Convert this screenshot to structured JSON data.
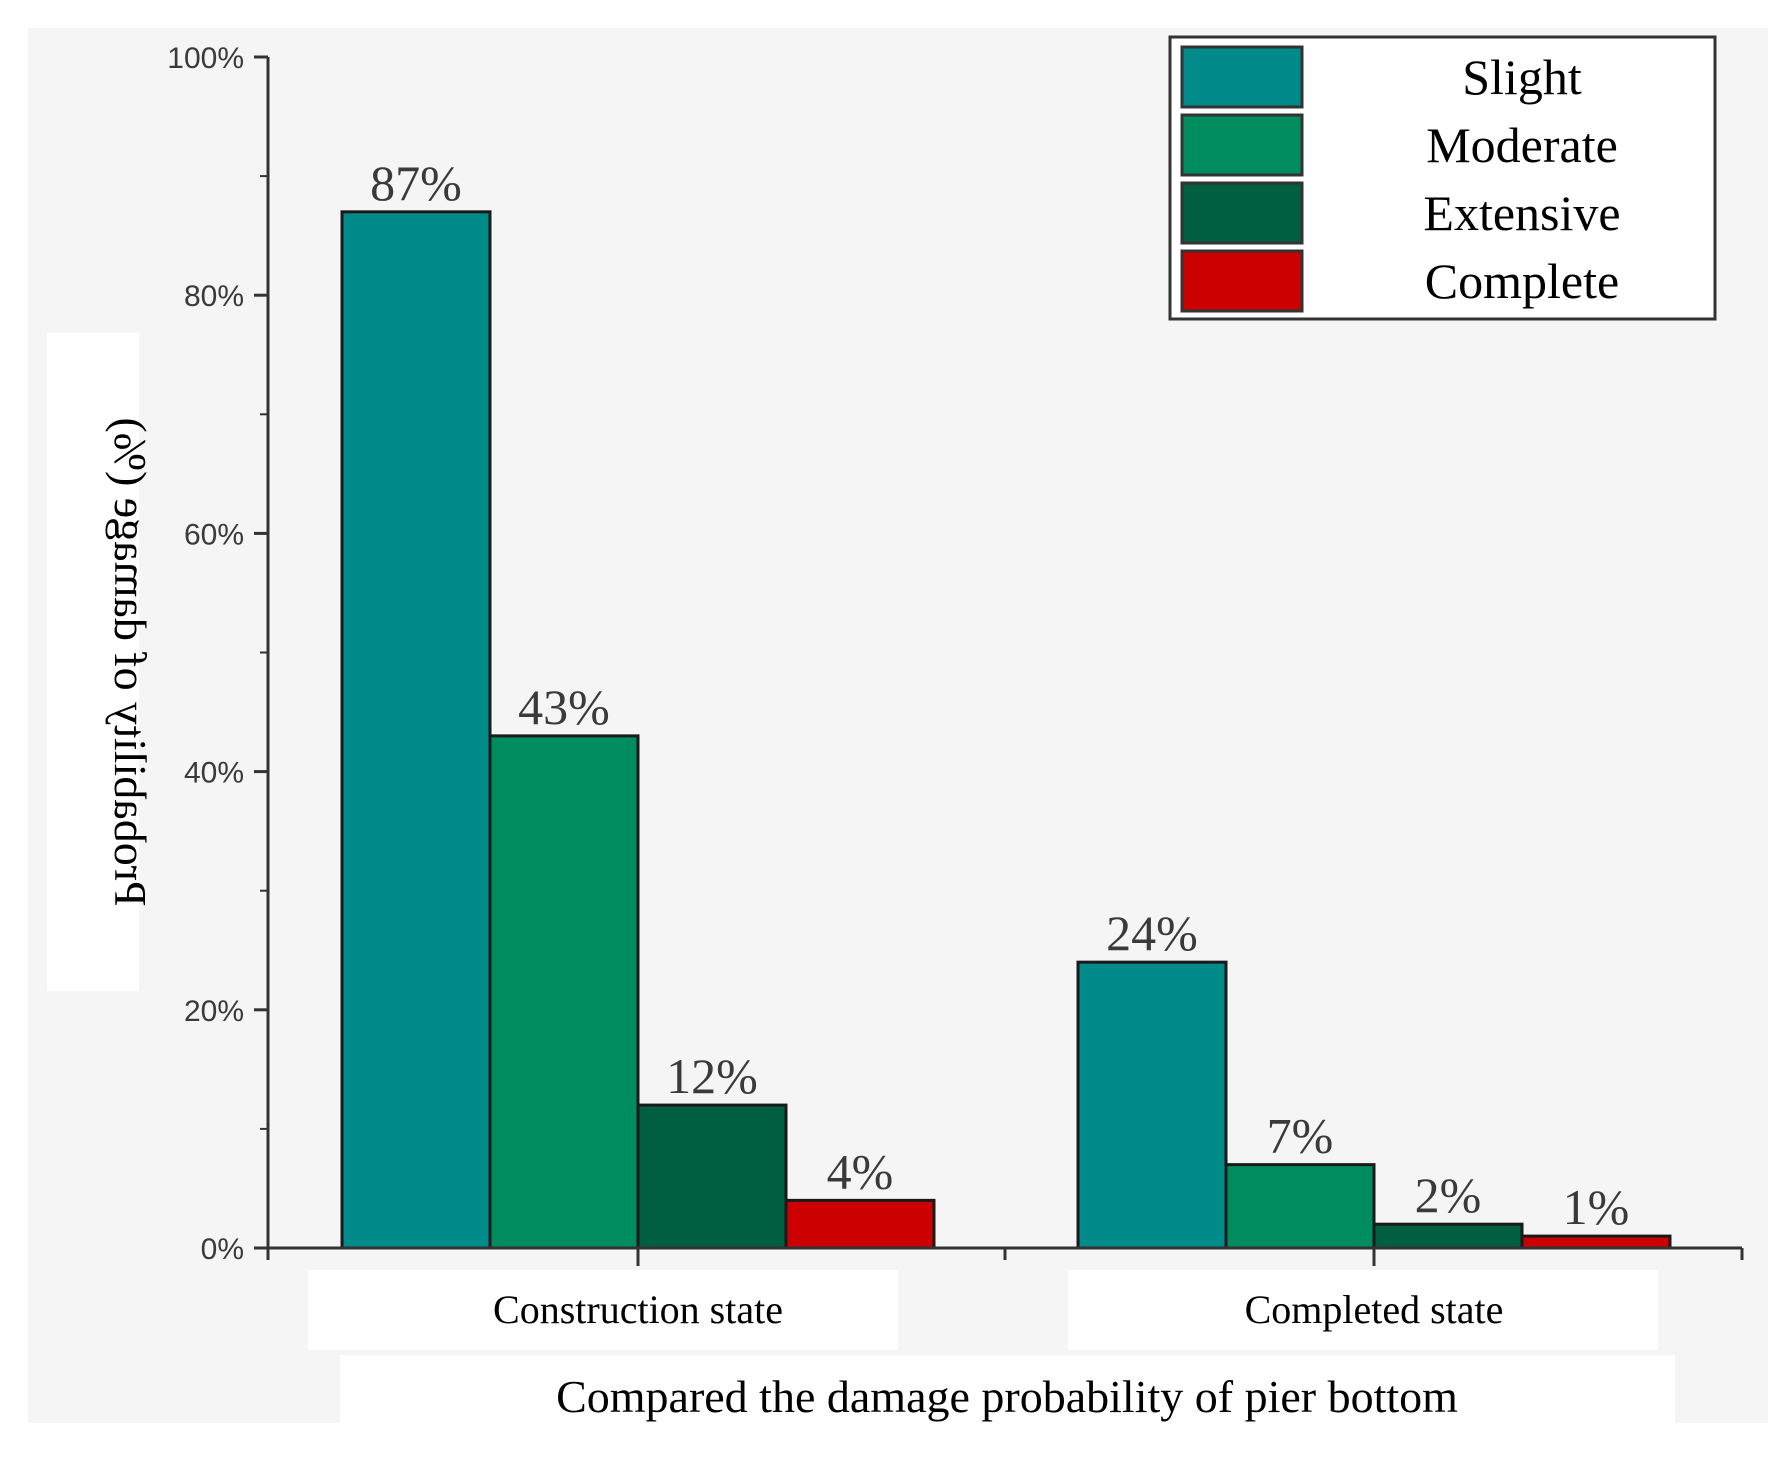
{
  "chart_data": {
    "type": "bar",
    "title": "",
    "xlabel": "Compared the damage probability of pier bottom",
    "ylabel": "Probability of damage (%)",
    "ylim": [
      0,
      100
    ],
    "y_ticks": [
      "0%",
      "20%",
      "40%",
      "60%",
      "80%",
      "100%"
    ],
    "categories": [
      "Construction state",
      "Completed state"
    ],
    "series": [
      {
        "name": "Slight",
        "color": "#008B8B",
        "values": [
          87,
          24
        ],
        "labels": [
          "87%",
          "24%"
        ]
      },
      {
        "name": "Moderate",
        "color": "#008C5F",
        "values": [
          43,
          7
        ],
        "labels": [
          "43%",
          "7%"
        ]
      },
      {
        "name": "Extensive",
        "color": "#005F40",
        "values": [
          12,
          2
        ],
        "labels": [
          "12%",
          "2%"
        ]
      },
      {
        "name": "Complete",
        "color": "#CC0000",
        "values": [
          4,
          1
        ],
        "labels": [
          "4%",
          "1%"
        ]
      }
    ],
    "legend_position": "top-right",
    "colors": {
      "background": "#F5F5F5",
      "axis": "#333333",
      "bar_stroke": "#1a1a1a"
    }
  }
}
